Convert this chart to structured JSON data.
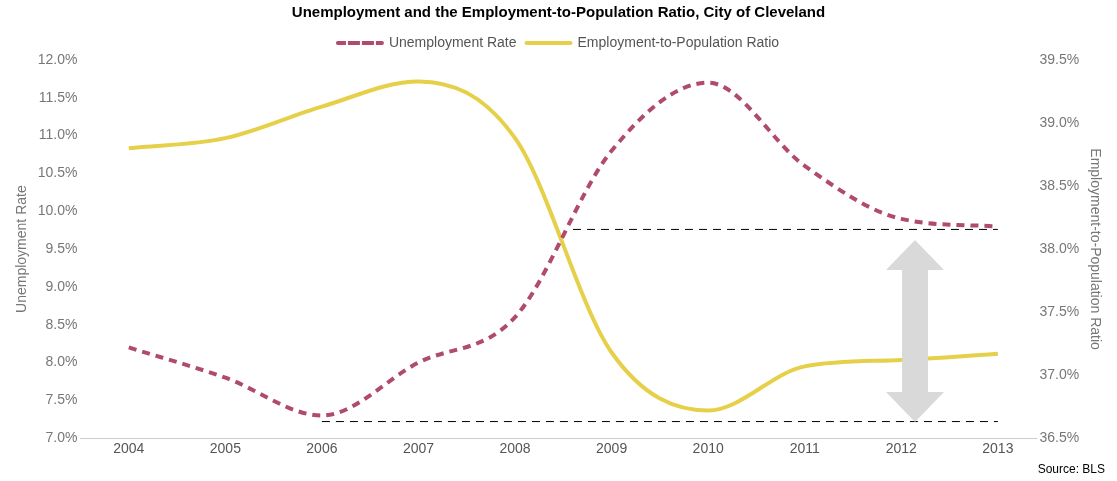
{
  "chart_data": {
    "type": "line",
    "title": "Unemployment and the Employment-to-Population Ratio, City of Cleveland",
    "ylabel": "Unemployment Rate",
    "y2label": "Employment-to-Population Ratio",
    "x": [
      2004,
      2005,
      2006,
      2007,
      2008,
      2009,
      2010,
      2011,
      2012,
      2013
    ],
    "xlim": [
      2003.5,
      2013.4
    ],
    "xticks": [
      2004,
      2005,
      2006,
      2007,
      2008,
      2009,
      2010,
      2011,
      2012,
      2013
    ],
    "ylim": [
      7,
      12
    ],
    "yticks": [
      {
        "value": 7,
        "label": "7.0%"
      },
      {
        "value": 7.5,
        "label": "7.5%"
      },
      {
        "value": 8,
        "label": "8.0%"
      },
      {
        "value": 8.5,
        "label": "8.5%"
      },
      {
        "value": 9,
        "label": "9.0%"
      },
      {
        "value": 9.5,
        "label": "9.5%"
      },
      {
        "value": 10,
        "label": "10.0%"
      },
      {
        "value": 10.5,
        "label": "10.5%"
      },
      {
        "value": 11,
        "label": "11.0%"
      },
      {
        "value": 11.5,
        "label": "11.5%"
      },
      {
        "value": 12,
        "label": "12.0%"
      }
    ],
    "y2lim": [
      36.5,
      39.5
    ],
    "y2ticks": [
      {
        "value": 36.5,
        "label": "36.5%"
      },
      {
        "value": 37,
        "label": "37.0%"
      },
      {
        "value": 37.5,
        "label": "37.5%"
      },
      {
        "value": 38,
        "label": "38.0%"
      },
      {
        "value": 38.5,
        "label": "38.5%"
      },
      {
        "value": 39,
        "label": "39.0%"
      },
      {
        "value": 39.5,
        "label": "39.5%"
      }
    ],
    "series": [
      {
        "name": "Unemployment Rate",
        "color": "#b04a6e",
        "line_style": "dashed",
        "values": [
          8.2,
          7.8,
          7.3,
          8.0,
          8.6,
          10.8,
          11.7,
          10.6,
          9.9,
          9.8
        ]
      },
      {
        "name": "Employment-to-Population Ratio",
        "color": "#e6d04a",
        "line_style": "solid",
        "axis": "y2",
        "values": [
          38.8,
          38.88,
          39.13,
          39.33,
          38.88,
          37.18,
          36.72,
          37.07,
          37.12,
          37.17
        ]
      },
      {
        "color": "#000000",
        "line_style": "dashed",
        "x": [
          2008.6,
          2013
        ],
        "values": [
          9.76,
          9.76
        ]
      },
      {
        "color": "#000000",
        "line_style": "dashed",
        "x": [
          2006,
          2013
        ],
        "values": [
          7.22,
          7.22
        ]
      }
    ],
    "legend": "top",
    "grid": false,
    "marker": "none",
    "annotations": [
      "Source: BLS"
    ]
  }
}
